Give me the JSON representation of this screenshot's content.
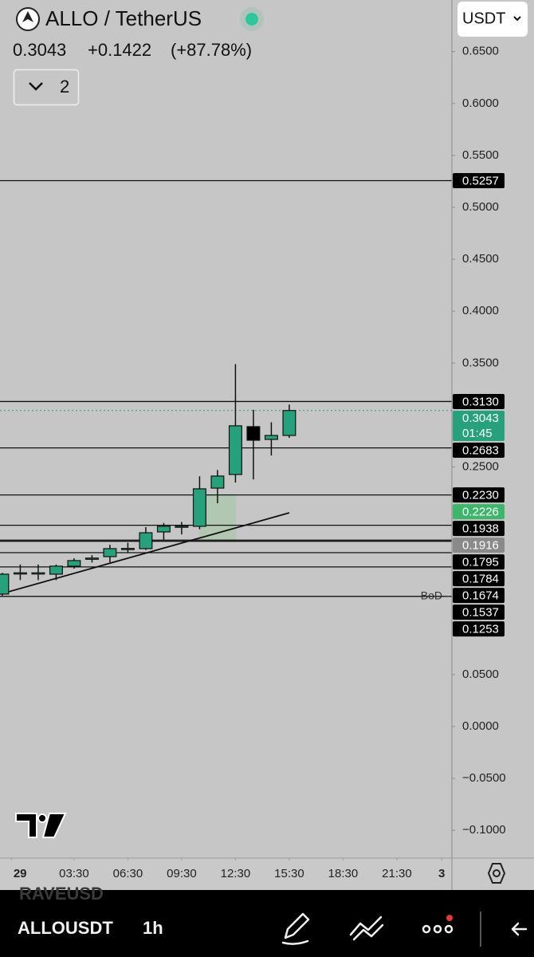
{
  "header": {
    "symbol": "ALLO / TetherUS",
    "price": "0.3043",
    "change": "+0.1422",
    "change_pct": "(+87.78%)",
    "indicator_count": "2",
    "currency": "USDT"
  },
  "chart_data": {
    "type": "candlestick",
    "x": [
      -0.5,
      0.5,
      1.5,
      2.5,
      3.5,
      4.5,
      5.5,
      6.5,
      7.5,
      8.5,
      9.5,
      10.5,
      11.5,
      12.5,
      13.5,
      14.5,
      15.5
    ],
    "open": [
      0.1275,
      0.1475,
      0.1475,
      0.1467,
      0.1544,
      0.162,
      0.1636,
      0.1713,
      0.1713,
      0.1874,
      0.1928,
      0.1928,
      0.2296,
      0.2427,
      0.2888,
      0.2765,
      0.2803
    ],
    "high": [
      0.148,
      0.156,
      0.156,
      0.156,
      0.162,
      0.165,
      0.175,
      0.177,
      0.192,
      0.196,
      0.197,
      0.241,
      0.247,
      0.349,
      0.305,
      0.293,
      0.31
    ],
    "low": [
      0.126,
      0.141,
      0.141,
      0.141,
      0.152,
      0.158,
      0.158,
      0.167,
      0.17,
      0.18,
      0.185,
      0.19,
      0.215,
      0.235,
      0.238,
      0.261,
      0.278
    ],
    "close": [
      0.1467,
      0.148,
      0.148,
      0.1544,
      0.1598,
      0.1622,
      0.1713,
      0.1715,
      0.1866,
      0.1928,
      0.193,
      0.2289,
      0.2412,
      0.2896,
      0.2757,
      0.2803,
      0.3043
    ],
    "up_color": "#26a17b",
    "down_color": "#000000",
    "xlim": [
      -0.63,
      24.57
    ],
    "xticks": [
      {
        "value": 0,
        "label": "29"
      },
      {
        "value": 3.5,
        "label": "03:30"
      },
      {
        "value": 6.5,
        "label": "06:30"
      },
      {
        "value": 9.5,
        "label": "09:30"
      },
      {
        "value": 12.5,
        "label": "12:30"
      },
      {
        "value": 15.5,
        "label": "15:30"
      },
      {
        "value": 18.5,
        "label": "18:30"
      },
      {
        "value": 21.5,
        "label": "21:30"
      },
      {
        "value": 24,
        "label": "3"
      }
    ],
    "ylim": [
      -0.126,
      0.6997
    ],
    "yticks": [
      {
        "value": 0.65,
        "label": "0.6500"
      },
      {
        "value": 0.6,
        "label": "0.6000"
      },
      {
        "value": 0.55,
        "label": "0.5500"
      },
      {
        "value": 0.5,
        "label": "0.5000"
      },
      {
        "value": 0.45,
        "label": "0.4500"
      },
      {
        "value": 0.4,
        "label": "0.4000"
      },
      {
        "value": 0.35,
        "label": "0.3500"
      },
      {
        "value": 0.25,
        "label": "0.2500"
      },
      {
        "value": 0.05,
        "label": "0.0500"
      },
      {
        "value": 0,
        "label": "0.0000"
      },
      {
        "value": -0.05,
        "label": "−0.0500"
      },
      {
        "value": -0.1,
        "label": "−0.1000"
      }
    ],
    "levels": [
      {
        "value": 0.5257,
        "label": "0.5257"
      },
      {
        "value": 0.313,
        "label": "0.3130"
      },
      {
        "value": 0.2683,
        "label": "0.2683"
      },
      {
        "value": 0.223,
        "label": "0.2230"
      },
      {
        "value": 0.1938,
        "label": "0.1938"
      },
      {
        "value": 0.1795,
        "label": "0.1795"
      },
      {
        "value": 0.1784,
        "label": "0.1784"
      },
      {
        "value": 0.1674,
        "label": "0.1674"
      },
      {
        "value": 0.1537,
        "label": "0.1537"
      },
      {
        "value": 0.1253,
        "label": "0.1253",
        "annotation": "BoD"
      }
    ],
    "current_price": {
      "value": 0.3043,
      "label": "0.3043",
      "countdown": "01:45",
      "color": "#26a17b"
    },
    "markers": [
      {
        "value": 0.2226,
        "label": "0.2226",
        "color": "#3db56a"
      },
      {
        "value": 0.1916,
        "label": "0.1916",
        "color": "#8a8a8a"
      }
    ]
  },
  "toolbar": {
    "prev_symbol": "RAVEUSD",
    "symbol": "ALLOUSDT",
    "interval": "1h"
  }
}
